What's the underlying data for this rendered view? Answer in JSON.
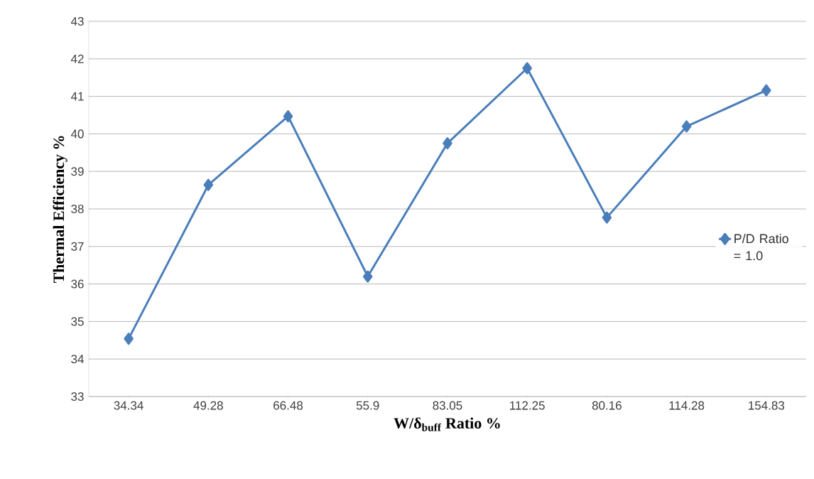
{
  "chart_data": {
    "type": "line",
    "xlabel": "W/δ$_{buff}$ Ratio %",
    "ylabel": "Thermal Efficiency %",
    "categories": [
      "34.34",
      "49.28",
      "66.48",
      "55.9",
      "83.05",
      "112.25",
      "80.16",
      "114.28",
      "154.83"
    ],
    "series": [
      {
        "name": "P/D Ratio = 1.0",
        "color": "#4a7ebb",
        "values": [
          34.54,
          38.64,
          40.47,
          36.2,
          39.75,
          41.75,
          37.77,
          40.2,
          41.16
        ]
      }
    ],
    "ylim": [
      33,
      43
    ],
    "yticks": [
      33,
      34,
      35,
      36,
      37,
      38,
      39,
      40,
      41,
      42,
      43
    ],
    "grid": "y",
    "legend": "right",
    "marker": "diamond",
    "line_style": "solid"
  }
}
